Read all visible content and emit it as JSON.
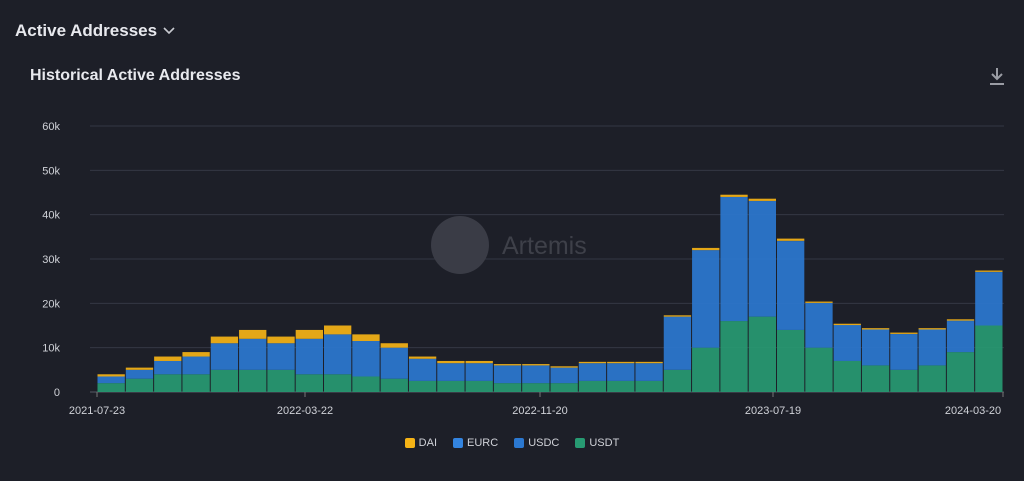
{
  "header": {
    "title": "Active Addresses"
  },
  "card": {
    "title": "Historical Active Addresses",
    "watermark": "Artemis"
  },
  "chart_data": {
    "type": "bar",
    "stacked": true,
    "title": "Historical Active Addresses",
    "xlabel": "",
    "ylabel": "",
    "ylim": [
      0,
      60000
    ],
    "yticks": [
      "0",
      "10k",
      "20k",
      "30k",
      "40k",
      "50k",
      "60k"
    ],
    "xticks": [
      "2021-07-23",
      "2022-03-22",
      "2022-11-20",
      "2023-07-19",
      "2024-03-20"
    ],
    "legend_position": "bottom",
    "categories": [
      "2021-08",
      "2021-09",
      "2021-10",
      "2021-11",
      "2021-12",
      "2022-01",
      "2022-02",
      "2022-03",
      "2022-04",
      "2022-05",
      "2022-06",
      "2022-07",
      "2022-08",
      "2022-09",
      "2022-10",
      "2022-11",
      "2022-12",
      "2023-01",
      "2023-02",
      "2023-03",
      "2023-04",
      "2023-05",
      "2023-06",
      "2023-07",
      "2023-08",
      "2023-09",
      "2023-10",
      "2023-11",
      "2023-12",
      "2024-01",
      "2024-02",
      "2024-03"
    ],
    "series": [
      {
        "name": "USDT",
        "color": "#279a72",
        "values": [
          2000,
          3000,
          4000,
          4000,
          5000,
          5000,
          5000,
          4000,
          4000,
          3500,
          3000,
          2500,
          2500,
          2500,
          2000,
          2000,
          2000,
          2500,
          2500,
          2500,
          5000,
          10000,
          16000,
          17000,
          14000,
          10000,
          7000,
          6000,
          5000,
          6000,
          9000,
          15000
        ]
      },
      {
        "name": "USDC",
        "color": "#2b78d0",
        "values": [
          1500,
          2000,
          3000,
          4000,
          6000,
          7000,
          6000,
          8000,
          9000,
          8000,
          7000,
          5000,
          4000,
          4000,
          4000,
          4000,
          3500,
          4000,
          4000,
          4000,
          12000,
          22000,
          28000,
          26000,
          20000,
          10000,
          8000,
          8000,
          8000,
          8000,
          7000,
          12000
        ]
      },
      {
        "name": "EURC",
        "color": "#3384e0",
        "values": [
          0,
          0,
          0,
          0,
          0,
          0,
          0,
          0,
          0,
          0,
          0,
          0,
          0,
          0,
          0,
          0,
          0,
          0,
          0,
          0,
          0,
          0,
          0,
          100,
          100,
          100,
          100,
          100,
          100,
          100,
          100,
          100
        ]
      },
      {
        "name": "DAI",
        "color": "#f5b316",
        "values": [
          500,
          500,
          1000,
          1000,
          1500,
          2000,
          1500,
          2000,
          2000,
          1500,
          1000,
          500,
          500,
          500,
          300,
          300,
          300,
          300,
          300,
          300,
          300,
          500,
          500,
          500,
          500,
          300,
          300,
          300,
          300,
          300,
          300,
          300
        ]
      }
    ],
    "legend": [
      "DAI",
      "EURC",
      "USDC",
      "USDT"
    ],
    "legend_colors": [
      "#f5b316",
      "#3384e0",
      "#2b78d0",
      "#279a72"
    ]
  }
}
